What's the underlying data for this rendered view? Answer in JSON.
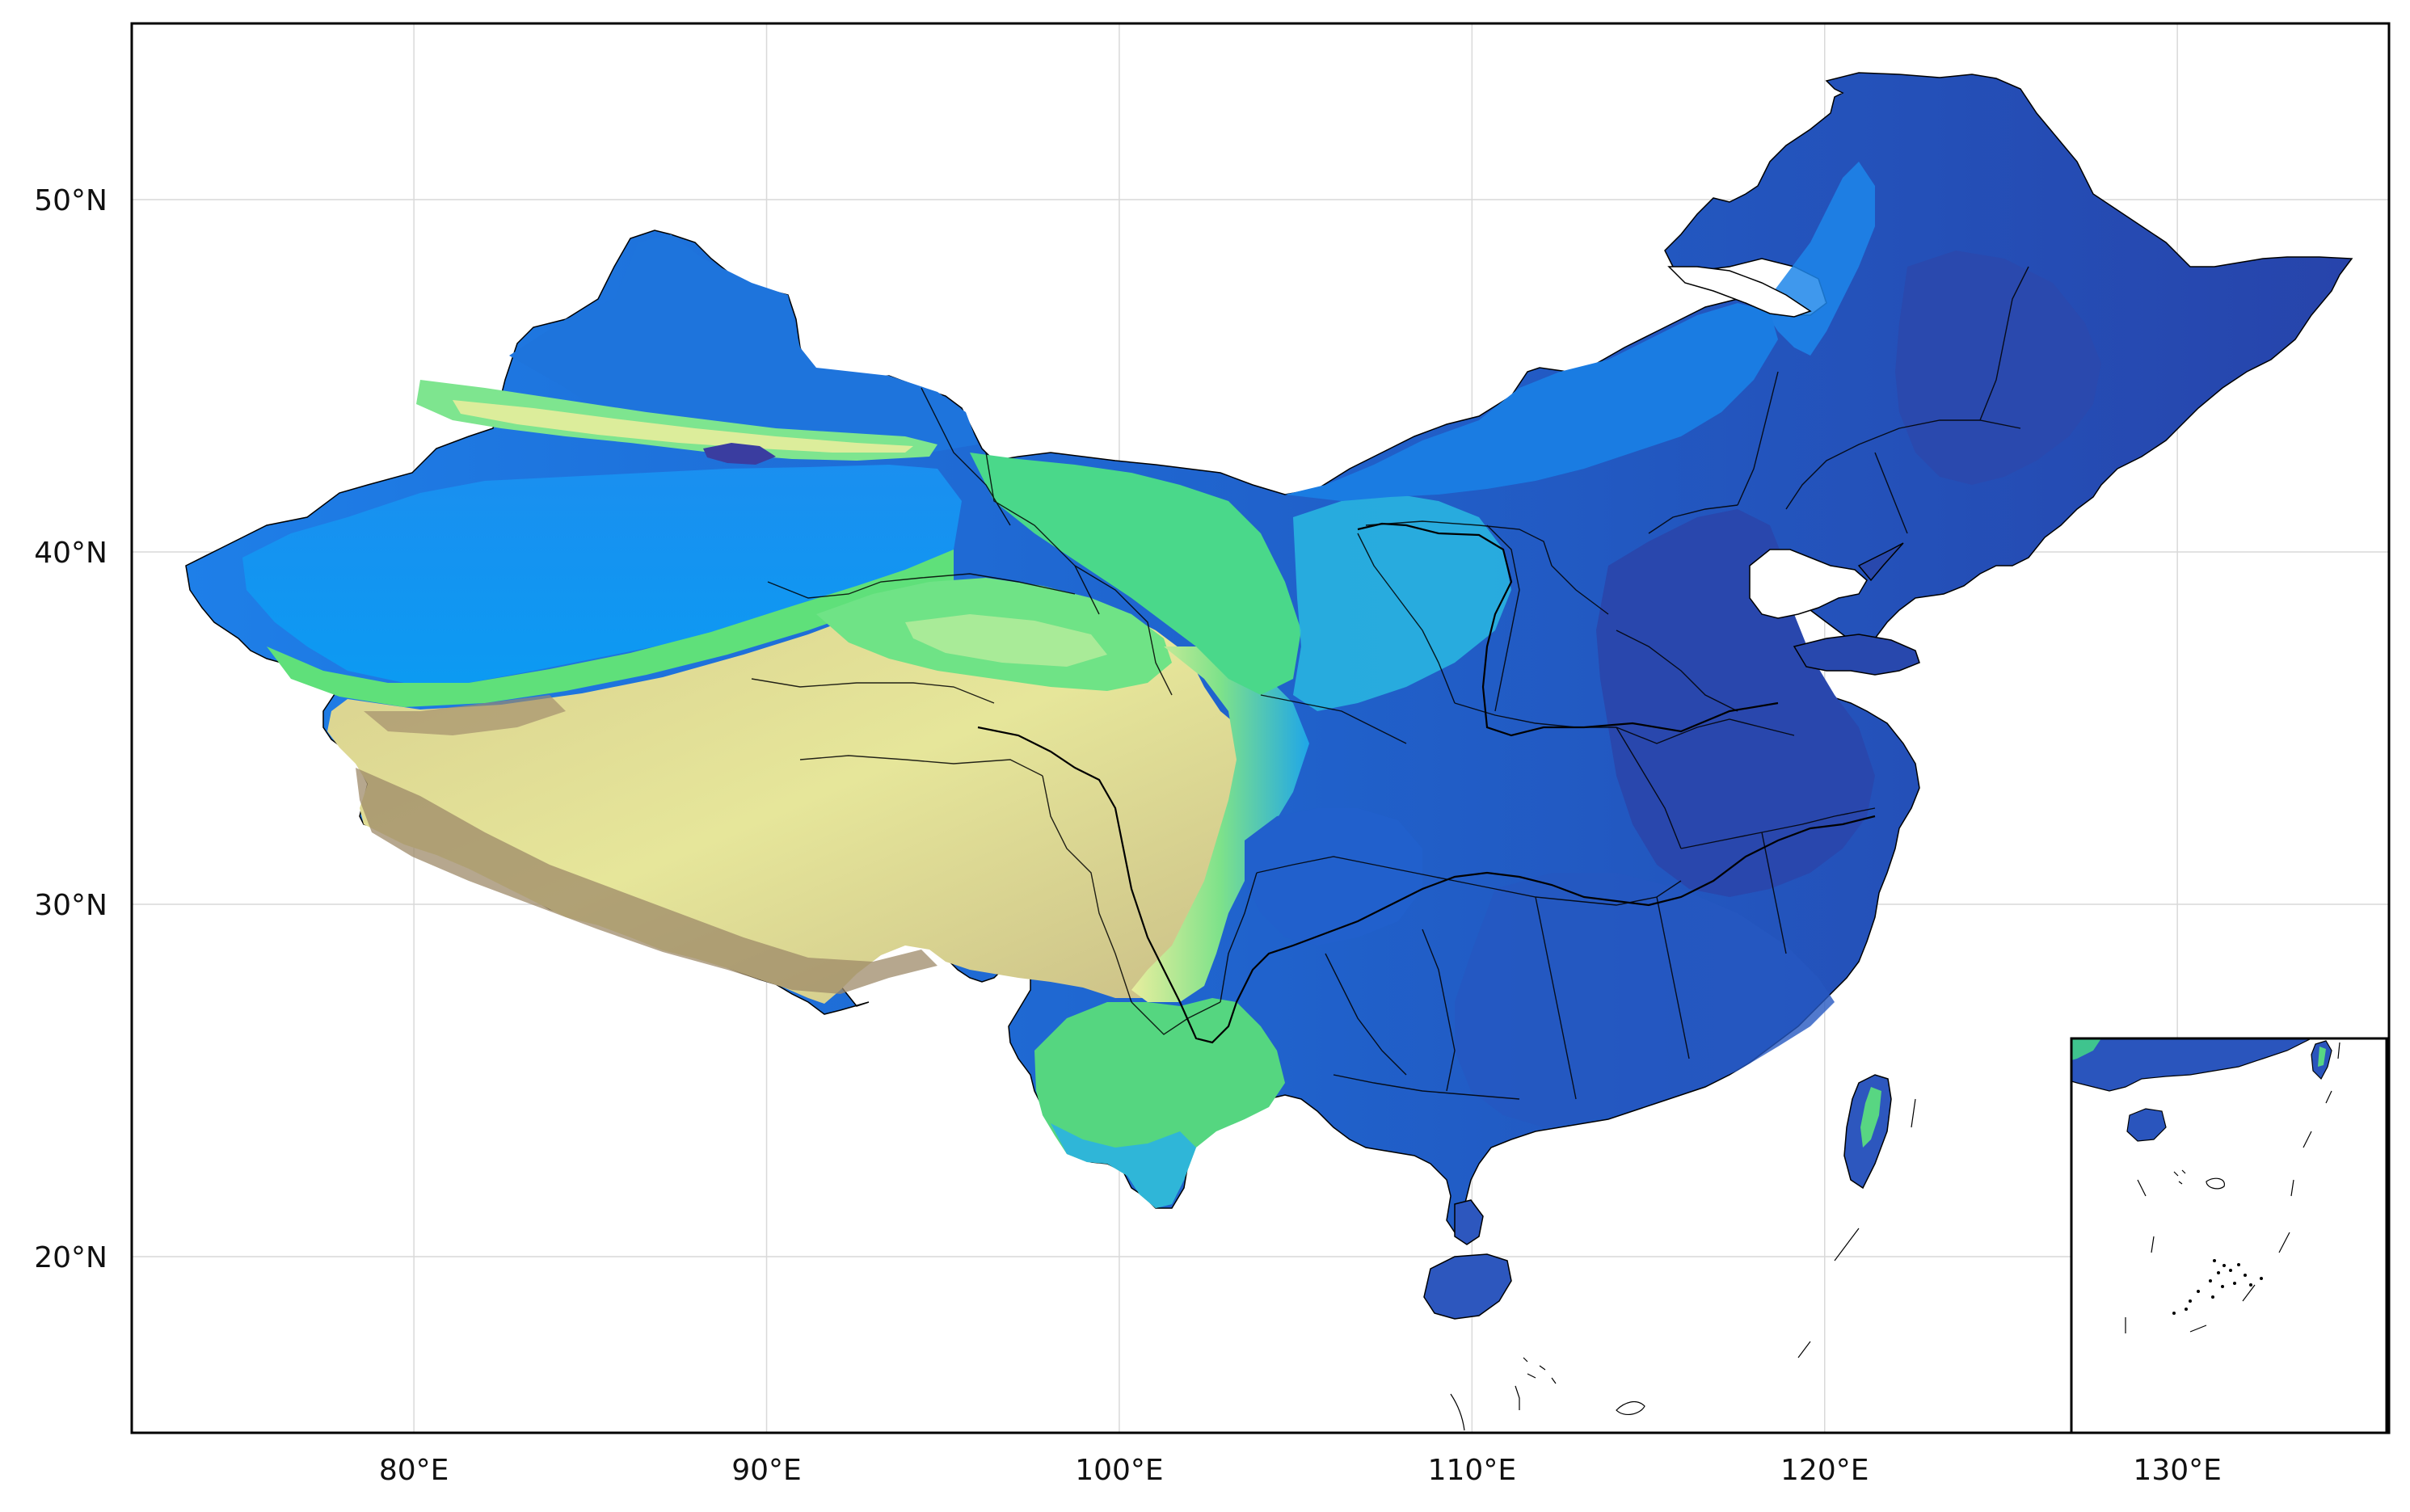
{
  "figure": {
    "type": "elevation-map",
    "region": "China",
    "colormap": "terrain",
    "grid": true,
    "inset": "South China Sea",
    "lon_range": [
      72,
      136
    ],
    "lat_range": [
      15,
      55
    ],
    "inset_lon_range": [
      105,
      125
    ],
    "inset_lat_range": [
      3,
      25
    ]
  },
  "axes": {
    "x_ticks": [
      {
        "value": 80,
        "label": "80°E"
      },
      {
        "value": 90,
        "label": "90°E"
      },
      {
        "value": 100,
        "label": "100°E"
      },
      {
        "value": 110,
        "label": "110°E"
      },
      {
        "value": 120,
        "label": "120°E"
      },
      {
        "value": 130,
        "label": "130°E"
      }
    ],
    "y_ticks": [
      {
        "value": 50,
        "label": "50°N"
      },
      {
        "value": 40,
        "label": "40°N"
      },
      {
        "value": 30,
        "label": "30°N"
      },
      {
        "value": 20,
        "label": "20°N"
      }
    ]
  },
  "colors": {
    "lowland": "#2748b0",
    "low_hills": "#1f6fd6",
    "plain": "#0a8ff0",
    "upland": "#5fe07a",
    "plateau": "#e9ee99",
    "high_plateau": "#cfc38a",
    "mountain": "#8a6f5a",
    "grid": "#d9d9d9",
    "border": "#000000"
  }
}
